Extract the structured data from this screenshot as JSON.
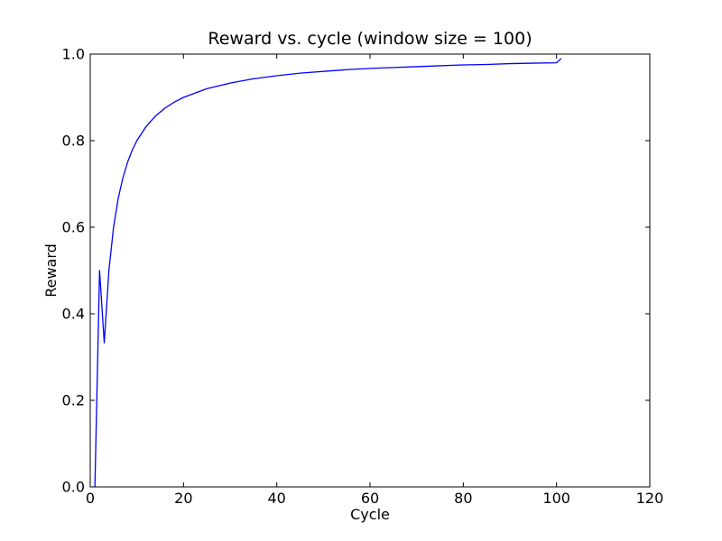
{
  "chart_data": {
    "type": "line",
    "title": "Reward vs. cycle (window size = 100)",
    "xlabel": "Cycle",
    "ylabel": "Reward",
    "xlim": [
      0,
      120
    ],
    "ylim": [
      0,
      1.0
    ],
    "xticks": [
      "0",
      "20",
      "40",
      "60",
      "80",
      "100",
      "120"
    ],
    "yticks": [
      "0.0",
      "0.2",
      "0.4",
      "0.6",
      "0.8",
      "1.0"
    ],
    "grid": false,
    "series": [
      {
        "color": "#0000ff",
        "x": [
          1,
          2,
          3,
          4,
          5,
          6,
          7,
          8,
          9,
          10,
          12,
          14,
          16,
          18,
          20,
          25,
          30,
          35,
          40,
          45,
          50,
          55,
          60,
          65,
          70,
          75,
          80,
          85,
          90,
          95,
          100,
          101
        ],
        "values": [
          0.0,
          0.5,
          0.333,
          0.5,
          0.6,
          0.667,
          0.714,
          0.75,
          0.778,
          0.8,
          0.833,
          0.857,
          0.875,
          0.889,
          0.9,
          0.92,
          0.933,
          0.943,
          0.95,
          0.956,
          0.96,
          0.964,
          0.967,
          0.969,
          0.971,
          0.973,
          0.975,
          0.976,
          0.978,
          0.979,
          0.98,
          0.99
        ]
      }
    ]
  }
}
